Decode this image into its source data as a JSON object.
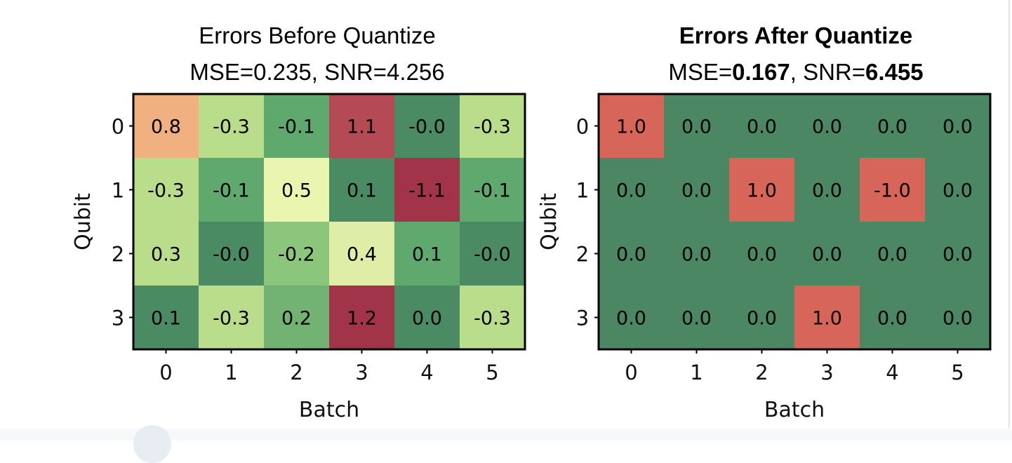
{
  "chart_data": [
    {
      "type": "heatmap",
      "title": "Errors Before Quantize",
      "subtitle": {
        "mse_label": "MSE=",
        "mse_value": "0.235",
        "snr_label": ", SNR=",
        "snr_value": "4.256",
        "values_bold": false
      },
      "title_bold": false,
      "xlabel": "Batch",
      "ylabel": "Qubit",
      "x_ticks": [
        "0",
        "1",
        "2",
        "3",
        "4",
        "5"
      ],
      "y_ticks": [
        "0",
        "1",
        "2",
        "3"
      ],
      "values": [
        [
          0.8,
          -0.3,
          -0.1,
          1.1,
          -0.0,
          -0.3
        ],
        [
          -0.3,
          -0.1,
          0.5,
          0.1,
          -1.1,
          -0.1
        ],
        [
          0.3,
          -0.0,
          -0.2,
          0.4,
          0.1,
          -0.0
        ],
        [
          0.1,
          -0.3,
          0.2,
          1.2,
          0.0,
          -0.3
        ]
      ],
      "labels": [
        [
          "0.8",
          "-0.3",
          "-0.1",
          "1.1",
          "-0.0",
          "-0.3"
        ],
        [
          "-0.3",
          "-0.1",
          "0.5",
          "0.1",
          "-1.1",
          "-0.1"
        ],
        [
          "0.3",
          "-0.0",
          "-0.2",
          "0.4",
          "0.1",
          "-0.0"
        ],
        [
          "0.1",
          "-0.3",
          "0.2",
          "1.2",
          "0.0",
          "-0.3"
        ]
      ],
      "colors": [
        [
          "#f0b07f",
          "#b9dd8a",
          "#5fa96e",
          "#b44a53",
          "#4b8b64",
          "#b9dd8a"
        ],
        [
          "#b9dd8a",
          "#5fa96e",
          "#eaf5b0",
          "#4b8b64",
          "#a2344a",
          "#5fa96e"
        ],
        [
          "#b9dd8a",
          "#4b8b64",
          "#8cc57c",
          "#deeea6",
          "#5fa96e",
          "#4b8b64"
        ],
        [
          "#4b8b64",
          "#b9dd8a",
          "#72b374",
          "#a2344a",
          "#4b8b64",
          "#b9dd8a"
        ]
      ],
      "grid": false
    },
    {
      "type": "heatmap",
      "title": "Errors After Quantize",
      "subtitle": {
        "mse_label": "MSE=",
        "mse_value": "0.167",
        "snr_label": ", SNR=",
        "snr_value": "6.455",
        "values_bold": true
      },
      "title_bold": true,
      "xlabel": "Batch",
      "ylabel": "Qubit",
      "x_ticks": [
        "0",
        "1",
        "2",
        "3",
        "4",
        "5"
      ],
      "y_ticks": [
        "0",
        "1",
        "2",
        "3"
      ],
      "values": [
        [
          1.0,
          0.0,
          0.0,
          0.0,
          0.0,
          0.0
        ],
        [
          0.0,
          0.0,
          1.0,
          0.0,
          -1.0,
          0.0
        ],
        [
          0.0,
          0.0,
          0.0,
          0.0,
          0.0,
          0.0
        ],
        [
          0.0,
          0.0,
          0.0,
          1.0,
          0.0,
          0.0
        ]
      ],
      "labels": [
        [
          "1.0",
          "0.0",
          "0.0",
          "0.0",
          "0.0",
          "0.0"
        ],
        [
          "0.0",
          "0.0",
          "1.0",
          "0.0",
          "-1.0",
          "0.0"
        ],
        [
          "0.0",
          "0.0",
          "0.0",
          "0.0",
          "0.0",
          "0.0"
        ],
        [
          "0.0",
          "0.0",
          "0.0",
          "1.0",
          "0.0",
          "0.0"
        ]
      ],
      "colors": [
        [
          "#d7655a",
          "#4a8762",
          "#4a8762",
          "#4a8762",
          "#4a8762",
          "#4a8762"
        ],
        [
          "#4a8762",
          "#4a8762",
          "#d7655a",
          "#4a8762",
          "#d7655a",
          "#4a8762"
        ],
        [
          "#4a8762",
          "#4a8762",
          "#4a8762",
          "#4a8762",
          "#4a8762",
          "#4a8762"
        ],
        [
          "#4a8762",
          "#4a8762",
          "#4a8762",
          "#d7655a",
          "#4a8762",
          "#4a8762"
        ]
      ],
      "grid": false
    }
  ]
}
